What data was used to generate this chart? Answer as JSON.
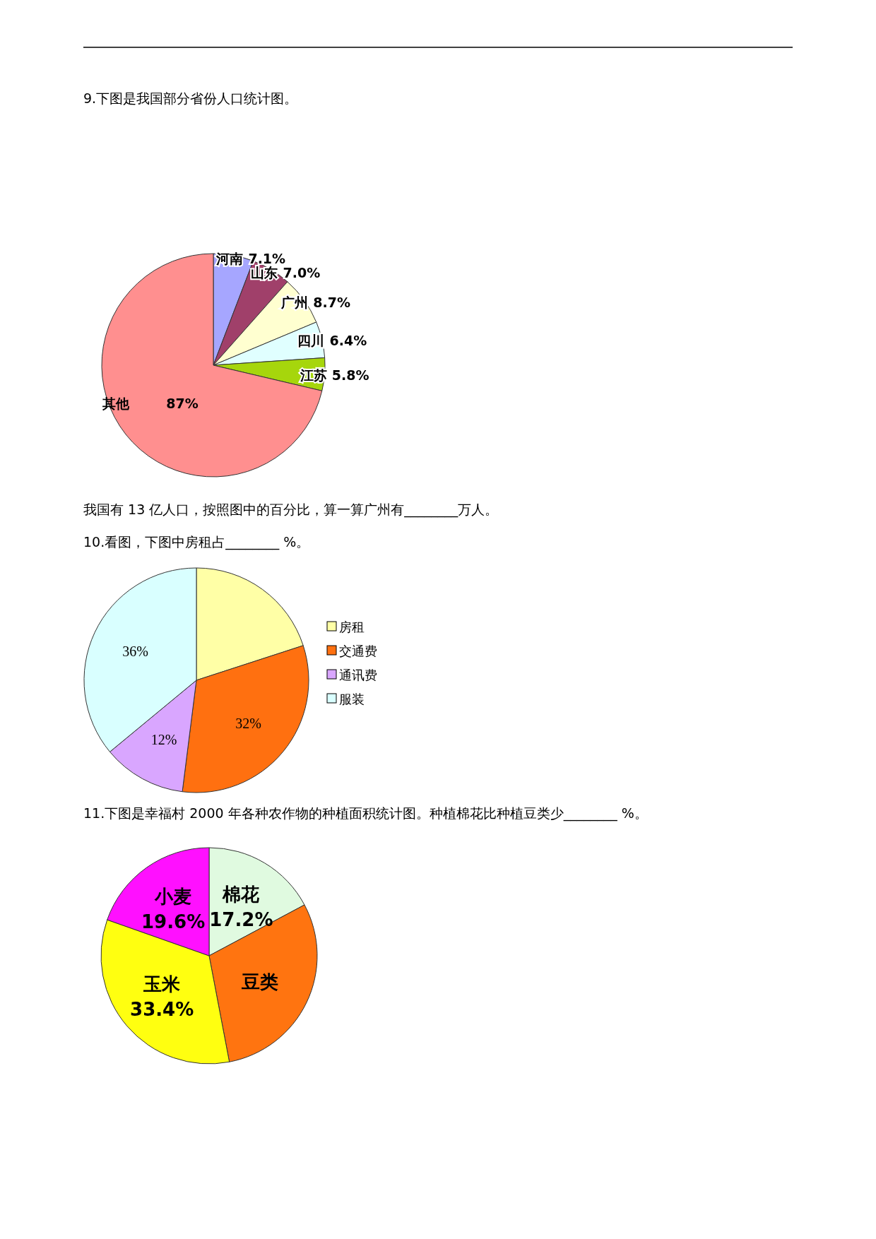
{
  "chart_data": [
    {
      "type": "pie",
      "title": "9.下图是我国部分省份人口统计图。",
      "annotations": [
        "我国有 13 亿人口，按照图中的百分比，算一算广州有________万人。"
      ],
      "categories": [
        "河南",
        "山东",
        "广州",
        "四川",
        "江苏",
        "其他"
      ],
      "values": [
        7.1,
        7.0,
        8.7,
        6.4,
        5.8,
        87
      ],
      "value_labels": [
        "7.1%",
        "7.0%",
        "8.7%",
        "6.4%",
        "5.8%",
        "87%"
      ],
      "colors": [
        "#a6a6ff",
        "#a0406a",
        "#ffffd0",
        "#e0ffff",
        "#a6d60c",
        "#ff8f8f"
      ],
      "legend": false
    },
    {
      "type": "pie",
      "title": "10.看图，下图中房租占________ %。",
      "categories": [
        "房租",
        "交通费",
        "通讯费",
        "服装"
      ],
      "values": [
        20,
        32,
        12,
        36
      ],
      "value_labels": [
        null,
        "32%",
        "12%",
        "36%"
      ],
      "colors": [
        "#ffffa6",
        "#ff7010",
        "#d9a6ff",
        "#d9ffff"
      ],
      "legend": "right"
    },
    {
      "type": "pie",
      "title": "11.下图是幸福村 2000 年各种农作物的种植面积统计图。种植棉花比种植豆类少________ %。",
      "categories": [
        "棉花",
        "豆类",
        "玉米",
        "小麦"
      ],
      "values": [
        17.2,
        29.8,
        33.4,
        19.6
      ],
      "value_labels": [
        "17.2%",
        null,
        "33.4%",
        "19.6%"
      ],
      "colors": [
        "#e0fae0",
        "#ff7410",
        "#ffff10",
        "#ff10ff"
      ],
      "legend": false
    }
  ]
}
